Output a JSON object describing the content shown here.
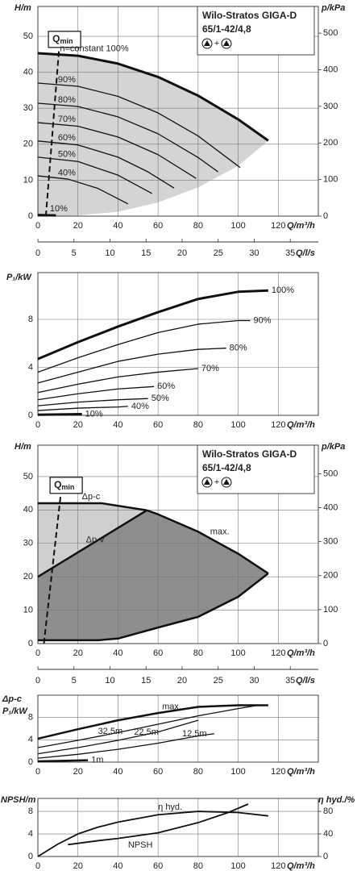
{
  "chart_data": [
    {
      "type": "line",
      "title": "Wilo-Stratos GIGA-D",
      "subtitle": "65/1-42/4,8",
      "symbol_join": "+",
      "ylabel": "H/m",
      "y2label": "p/kPa",
      "xlabel": "Q/m³/h",
      "x2label": "Q/l/s",
      "xlim": [
        0,
        140
      ],
      "xticks": [
        0,
        20,
        40,
        60,
        80,
        100,
        120
      ],
      "x2lim": [
        0,
        38.89
      ],
      "x2ticks": [
        0,
        5,
        10,
        15,
        20,
        25,
        30,
        35
      ],
      "ylim": [
        0,
        58.3
      ],
      "yticks": [
        0,
        10,
        20,
        30,
        40,
        50
      ],
      "y2lim": [
        0,
        573
      ],
      "y2ticks": [
        0,
        100,
        200,
        300,
        400,
        500
      ],
      "grid": true,
      "areas": [
        {
          "color": "#d4d4d4",
          "x": [
            0,
            20,
            40,
            60,
            80,
            100,
            115,
            100,
            80,
            60,
            40,
            20,
            0
          ],
          "values": [
            45.3,
            44.6,
            42.4,
            38.7,
            33.5,
            26.9,
            21,
            14,
            8,
            3.8,
            1.2,
            0.2,
            0
          ]
        }
      ],
      "qmin": {
        "label": "Q",
        "subscript": "min",
        "x": [
          4,
          10.5
        ],
        "values": [
          0,
          46
        ]
      },
      "series": [
        {
          "name": "n=constant 100%",
          "color": "#111111",
          "width": 3,
          "x": [
            0,
            20,
            40,
            60,
            80,
            100,
            115
          ],
          "values": [
            45.3,
            44.6,
            42.4,
            38.7,
            33.5,
            26.9,
            21
          ]
        },
        {
          "name": "90%",
          "color": "#111111",
          "width": 1.3,
          "x": [
            0,
            20,
            40,
            60,
            80,
            101
          ],
          "values": [
            37,
            36.1,
            33.3,
            28.7,
            22.3,
            13.5
          ]
        },
        {
          "name": "80%",
          "color": "#111111",
          "width": 1.3,
          "x": [
            0,
            20,
            40,
            60,
            80,
            90
          ],
          "values": [
            31.4,
            30.5,
            27.6,
            22.9,
            16.3,
            12.3
          ]
        },
        {
          "name": "70%",
          "color": "#111111",
          "width": 1.3,
          "x": [
            0,
            20,
            40,
            60,
            79
          ],
          "values": [
            26,
            25,
            22,
            17.1,
            10.5
          ]
        },
        {
          "name": "60%",
          "color": "#111111",
          "width": 1.3,
          "x": [
            0,
            20,
            40,
            55,
            68
          ],
          "values": [
            20.9,
            19.8,
            16.4,
            12.3,
            7.8
          ]
        },
        {
          "name": "50%",
          "color": "#111111",
          "width": 1.3,
          "x": [
            0,
            20,
            40,
            57
          ],
          "values": [
            16.4,
            15.2,
            11.4,
            6.3
          ]
        },
        {
          "name": "40%",
          "color": "#111111",
          "width": 1.3,
          "x": [
            0,
            15,
            30,
            45
          ],
          "values": [
            11.2,
            10.3,
            7.7,
            3.4
          ]
        },
        {
          "name": "10%",
          "color": "#111111",
          "width": 3,
          "x": [
            0,
            9
          ],
          "values": [
            0.3,
            0.2
          ]
        }
      ]
    },
    {
      "type": "line",
      "ylabel": "P₁/kW",
      "xlabel": "Q/m³/h",
      "xlim": [
        0,
        140
      ],
      "xticks": [
        0,
        20,
        40,
        60,
        80,
        100,
        120
      ],
      "ylim": [
        0,
        11.9
      ],
      "yticks": [
        0,
        4,
        8
      ],
      "grid": true,
      "series": [
        {
          "name": "100%",
          "color": "#111111",
          "width": 3,
          "x": [
            0,
            20,
            40,
            60,
            80,
            100,
            115
          ],
          "values": [
            4.7,
            6.1,
            7.4,
            8.6,
            9.7,
            10.3,
            10.4
          ]
        },
        {
          "name": "90%",
          "color": "#111111",
          "width": 1.3,
          "x": [
            0,
            20,
            40,
            60,
            80,
            100,
            106
          ],
          "values": [
            3.6,
            4.8,
            5.9,
            6.9,
            7.6,
            7.9,
            7.9
          ]
        },
        {
          "name": "80%",
          "color": "#111111",
          "width": 1.3,
          "x": [
            0,
            20,
            40,
            60,
            80,
            94
          ],
          "values": [
            2.7,
            3.6,
            4.5,
            5.1,
            5.5,
            5.6
          ]
        },
        {
          "name": "70%",
          "color": "#111111",
          "width": 1.3,
          "x": [
            0,
            20,
            40,
            60,
            80
          ],
          "values": [
            1.9,
            2.6,
            3.2,
            3.6,
            3.9
          ]
        },
        {
          "name": "60%",
          "color": "#111111",
          "width": 1.3,
          "x": [
            0,
            20,
            40,
            58
          ],
          "values": [
            1.3,
            1.8,
            2.2,
            2.4
          ]
        },
        {
          "name": "50%",
          "color": "#111111",
          "width": 1.3,
          "x": [
            0,
            20,
            40,
            55
          ],
          "values": [
            0.8,
            1.1,
            1.3,
            1.4
          ]
        },
        {
          "name": "40%",
          "color": "#111111",
          "width": 1.3,
          "x": [
            0,
            20,
            40,
            45
          ],
          "values": [
            0.4,
            0.6,
            0.7,
            0.75
          ]
        },
        {
          "name": "10%",
          "color": "#111111",
          "width": 3,
          "x": [
            0,
            22
          ],
          "values": [
            0.05,
            0.1
          ]
        }
      ]
    },
    {
      "type": "line",
      "title": "Wilo-Stratos GIGA-D",
      "subtitle": "65/1-42/4,8",
      "symbol_join": "+",
      "ylabel": "H/m",
      "y2label": "p/kPa",
      "xlabel": "Q/m³/h",
      "x2label": "Q/l/s",
      "xlim": [
        0,
        140
      ],
      "xticks": [
        0,
        20,
        40,
        60,
        80,
        100,
        120
      ],
      "x2lim": [
        0,
        38.89
      ],
      "x2ticks": [
        0,
        5,
        10,
        15,
        20,
        25,
        30,
        35
      ],
      "ylim": [
        0,
        59.4
      ],
      "yticks": [
        0,
        10,
        20,
        30,
        40,
        50
      ],
      "y2lim": [
        0,
        584
      ],
      "y2ticks": [
        0,
        100,
        200,
        300,
        400,
        500
      ],
      "grid": true,
      "areas": [
        {
          "color": "#cfcfcf",
          "x": [
            0,
            32,
            54.4,
            0
          ],
          "values": [
            42,
            42,
            39.9,
            20
          ]
        },
        {
          "color": "#8e8e8e",
          "x": [
            0,
            54.4,
            60,
            80,
            100,
            115,
            100,
            80,
            60,
            40,
            30,
            0
          ],
          "values": [
            20,
            39.9,
            38.7,
            33.5,
            26.9,
            21,
            14,
            8,
            4.8,
            1.5,
            1,
            1
          ]
        }
      ],
      "qmin": {
        "label": "Q",
        "subscript": "min",
        "x": [
          3,
          11.3
        ],
        "values": [
          0,
          44
        ]
      },
      "series": [
        {
          "name": "Δp-c",
          "color": "#111111",
          "width": 2.5,
          "x": [
            0,
            32,
            54.4
          ],
          "values": [
            42,
            42,
            39.9
          ]
        },
        {
          "name": "Δp-v",
          "color": "#111111",
          "width": 2.5,
          "x": [
            0,
            54.4
          ],
          "values": [
            20,
            39.9
          ]
        },
        {
          "name": "max.",
          "color": "#111111",
          "width": 2.5,
          "x": [
            54.4,
            60,
            80,
            100,
            115
          ],
          "values": [
            39.9,
            38.7,
            33.5,
            26.9,
            21
          ]
        },
        {
          "color": "#111111",
          "width": 2.5,
          "x": [
            0,
            30,
            40,
            60,
            80,
            100,
            115
          ],
          "values": [
            1,
            1,
            1.5,
            4.8,
            8,
            14,
            21
          ]
        }
      ]
    },
    {
      "type": "line",
      "control_mode": "Δp-c",
      "ylabel": "P₁/kW",
      "xlabel": "Q/m³/h",
      "xlim": [
        0,
        140
      ],
      "xticks": [
        0,
        20,
        40,
        60,
        80,
        100,
        120
      ],
      "ylim": [
        0,
        12
      ],
      "yticks": [
        0,
        4,
        8
      ],
      "grid": true,
      "series": [
        {
          "name": "max.",
          "color": "#111111",
          "width": 2.5,
          "x": [
            0,
            20,
            40,
            60,
            80,
            100,
            115
          ],
          "values": [
            4.2,
            5.9,
            7.5,
            8.8,
            9.9,
            10.2,
            10.2
          ]
        },
        {
          "name": "32,5m",
          "color": "#111111",
          "width": 1.3,
          "x": [
            0,
            20,
            40,
            60,
            80,
            100,
            110
          ],
          "values": [
            2.6,
            3.9,
            5.3,
            6.8,
            8.3,
            9.6,
            10.2
          ]
        },
        {
          "name": "22,5m",
          "color": "#111111",
          "width": 1.3,
          "x": [
            0,
            20,
            40,
            60,
            80
          ],
          "values": [
            1.5,
            2.6,
            3.9,
            5.4,
            7.5
          ]
        },
        {
          "name": "12,5m",
          "color": "#111111",
          "width": 1.3,
          "x": [
            0,
            20,
            40,
            60,
            80,
            88
          ],
          "values": [
            0.7,
            1.4,
            2.3,
            3.4,
            4.7,
            5.1
          ]
        },
        {
          "name": "1m",
          "color": "#111111",
          "width": 2.5,
          "x": [
            0,
            25
          ],
          "values": [
            0.15,
            0.35
          ]
        }
      ]
    },
    {
      "type": "line",
      "ylabel": "NPSH/m",
      "y2label": "η hyd./%",
      "xlabel": "Q/m³/h",
      "xlim": [
        0,
        140
      ],
      "xticks": [
        0,
        20,
        40,
        60,
        80,
        100,
        120
      ],
      "ylim": [
        0,
        10.3
      ],
      "yticks": [
        0,
        4,
        8
      ],
      "y2lim": [
        0,
        103
      ],
      "y2ticks": [
        0,
        40,
        80
      ],
      "grid": true,
      "series": [
        {
          "name": "η hyd.",
          "color": "#111111",
          "width": 1.8,
          "axis": "y2",
          "x": [
            0,
            10,
            20,
            30,
            40,
            60,
            80,
            100,
            115
          ],
          "values": [
            0,
            22,
            40,
            52,
            61,
            74,
            80,
            78,
            72
          ]
        },
        {
          "name": "NPSH",
          "color": "#111111",
          "width": 1.8,
          "x": [
            15,
            30,
            40,
            60,
            80,
            95,
            105
          ],
          "values": [
            2.1,
            2.8,
            3.2,
            4.2,
            6,
            7.8,
            9.3
          ]
        }
      ]
    }
  ]
}
